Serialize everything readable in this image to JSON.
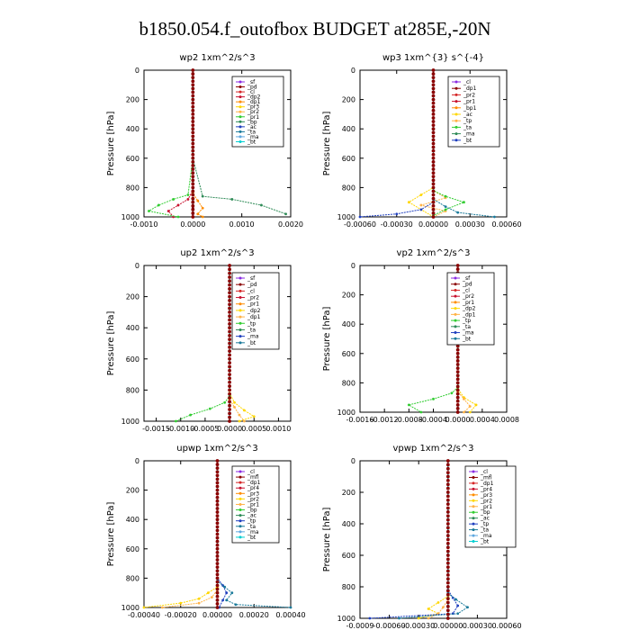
{
  "figure": {
    "title": "b1850.054.f_outofbox  BUDGET at285E,-20N"
  },
  "colors": {
    "purple": "#8a2be2",
    "dark_red": "#8b0000",
    "red": "#d62728",
    "crimson": "#c8102e",
    "orange": "#ff8c00",
    "gold": "#ffd700",
    "light_orange": "#ffb347",
    "lime": "#32cd32",
    "green": "#2e8b57",
    "dark_green": "#006400",
    "blue": "#1f3fbf",
    "teal": "#1a7a9a",
    "cyan": "#00ced1",
    "light_blue": "#5fa8e0",
    "navy": "#00008b"
  },
  "chart_data": [
    {
      "type": "line",
      "title": "wp2   1xm^2/s^3",
      "ylabel": "Pressure [hPa]",
      "ylim": [
        1000,
        0
      ],
      "xlim": [
        -0.001,
        0.002
      ],
      "yticks": [
        0,
        200,
        400,
        600,
        800,
        1000
      ],
      "xticks": [
        -0.001,
        0.0,
        0.001,
        0.002
      ],
      "xtick_labels": [
        "-0.0010",
        "0.0000",
        "0.0010",
        "0.0020"
      ],
      "legend": [
        "_sf",
        "_pd",
        "_cl",
        "_dp2",
        "_dp1",
        "_pr3",
        "_pr2",
        "_pr1",
        "_bp",
        "_ac",
        "_ta",
        "_ma",
        "_bt"
      ],
      "series": [
        {
          "name": "_sf",
          "color": "#8a2be2",
          "x": [
            0,
            0,
            0,
            0,
            0,
            0,
            0,
            0,
            0
          ],
          "y": [
            0,
            200,
            400,
            600,
            800,
            880,
            940,
            980,
            1000
          ]
        },
        {
          "name": "_pd",
          "color": "#8b0000",
          "x": [
            0,
            0,
            0,
            0,
            0,
            0,
            0,
            0,
            0
          ],
          "y": [
            0,
            200,
            400,
            600,
            800,
            880,
            940,
            980,
            1000
          ]
        },
        {
          "name": "_dp2",
          "color": "#c8102e",
          "x": [
            0,
            0,
            0,
            -0.0001,
            -0.0003,
            -0.0005,
            -0.0004
          ],
          "y": [
            0,
            600,
            820,
            880,
            920,
            960,
            1000
          ]
        },
        {
          "name": "_pr3",
          "color": "#ff8c00",
          "x": [
            0,
            0,
            0,
            0.0001,
            0.0002,
            0.0001,
            0.0002
          ],
          "y": [
            0,
            600,
            840,
            890,
            940,
            980,
            1000
          ]
        },
        {
          "name": "_pr1",
          "color": "#32cd32",
          "x": [
            0,
            0,
            -0.0001,
            -0.0004,
            -0.0007,
            -0.0009,
            -0.0003
          ],
          "y": [
            0,
            600,
            850,
            880,
            920,
            960,
            1000
          ]
        },
        {
          "name": "_ac",
          "color": "#2e8b57",
          "x": [
            0,
            0,
            0.0002,
            0.0008,
            0.0014,
            0.0019
          ],
          "y": [
            0,
            600,
            860,
            880,
            920,
            980
          ]
        },
        {
          "name": "_bt",
          "color": "#00ced1",
          "x": [
            0,
            0,
            0,
            0,
            0
          ],
          "y": [
            0,
            400,
            800,
            900,
            1000
          ]
        }
      ]
    },
    {
      "type": "line",
      "title": "wp3   1xm^{3} s^{-4}",
      "ylabel": "Pressure [hPa]",
      "ylim": [
        1000,
        0
      ],
      "xlim": [
        -0.0006,
        0.0006
      ],
      "yticks": [
        0,
        200,
        400,
        600,
        800,
        1000
      ],
      "xticks": [
        -0.0006,
        -0.0003,
        0.0,
        0.0003,
        0.0006
      ],
      "xtick_labels": [
        "-0.00060",
        "-0.00030",
        "0.00000",
        "0.00030",
        "0.00060"
      ],
      "legend": [
        "_cl",
        "_dp1",
        "_pr2",
        "_pr1",
        "_bp1",
        "_ac",
        "_tp",
        "_ta",
        "_ma",
        "_bt"
      ],
      "series": [
        {
          "name": "_cl",
          "color": "#8a2be2",
          "x": [
            0,
            0,
            0,
            0,
            0,
            0
          ],
          "y": [
            0,
            200,
            400,
            600,
            800,
            1000
          ]
        },
        {
          "name": "_dp1",
          "color": "#c8102e",
          "x": [
            0,
            0,
            0,
            0,
            0,
            0
          ],
          "y": [
            0,
            200,
            400,
            600,
            800,
            1000
          ]
        },
        {
          "name": "_pr2",
          "color": "#ffd700",
          "x": [
            0,
            0,
            -0.0001,
            -0.0002,
            -0.0001,
            0
          ],
          "y": [
            0,
            800,
            850,
            900,
            950,
            1000
          ]
        },
        {
          "name": "_pr1",
          "color": "#ffb347",
          "x": [
            0,
            0,
            0.0001,
            -0.0001,
            0.0001,
            0
          ],
          "y": [
            0,
            820,
            870,
            920,
            960,
            1000
          ]
        },
        {
          "name": "_ac",
          "color": "#32cd32",
          "x": [
            0,
            0,
            0.0001,
            0.00025,
            0.0001,
            0
          ],
          "y": [
            0,
            820,
            860,
            900,
            950,
            990
          ]
        },
        {
          "name": "_tp",
          "color": "#1f3fbf",
          "x": [
            0,
            0,
            -0.0001,
            -0.0003,
            -0.0006
          ],
          "y": [
            0,
            900,
            950,
            980,
            1000
          ]
        },
        {
          "name": "_ta",
          "color": "#1a7a9a",
          "x": [
            0,
            0,
            0.0001,
            0.0002,
            0.0005
          ],
          "y": [
            0,
            880,
            930,
            970,
            1000
          ]
        },
        {
          "name": "_bt",
          "color": "#00ced1",
          "x": [
            0,
            0,
            0,
            0
          ],
          "y": [
            0,
            500,
            900,
            1000
          ]
        }
      ]
    },
    {
      "type": "line",
      "title": "up2   1xm^2/s^3",
      "ylabel": "Pressure [hPa]",
      "ylim": [
        1000,
        0
      ],
      "xlim": [
        -0.00175,
        0.00125
      ],
      "yticks": [
        0,
        200,
        400,
        600,
        800,
        1000
      ],
      "xticks": [
        -0.0015,
        -0.001,
        -0.0005,
        0.0,
        0.0005,
        0.001
      ],
      "xtick_labels": [
        "-0.0015",
        "-0.0010",
        "-0.0005",
        "0.0000",
        "0.0005",
        "0.0010"
      ],
      "legend": [
        "_sf",
        "_pd",
        "_cl",
        "_pr2",
        "_pr1",
        "_dp2",
        "_dp1",
        "_tp",
        "_ta",
        "_ma",
        "_bt"
      ],
      "series": [
        {
          "name": "_sf",
          "color": "#8a2be2",
          "x": [
            0,
            0,
            0,
            0,
            0,
            0
          ],
          "y": [
            0,
            200,
            400,
            600,
            800,
            1000
          ]
        },
        {
          "name": "_pd",
          "color": "#8b0000",
          "x": [
            0,
            0,
            0,
            0,
            0,
            0
          ],
          "y": [
            0,
            200,
            400,
            600,
            800,
            1000
          ]
        },
        {
          "name": "_pr2",
          "color": "#ffd700",
          "x": [
            0,
            0,
            0.0001,
            0.0003,
            0.0005,
            0.0002
          ],
          "y": [
            0,
            820,
            880,
            930,
            970,
            1000
          ]
        },
        {
          "name": "_pr1",
          "color": "#ffb347",
          "x": [
            0,
            0,
            0.0001,
            0.0002,
            0.0003
          ],
          "y": [
            0,
            860,
            910,
            960,
            1000
          ]
        },
        {
          "name": "_dp1",
          "color": "#32cd32",
          "x": [
            0,
            0,
            -0.0001,
            -0.0004,
            -0.0008,
            -0.0011
          ],
          "y": [
            0,
            840,
            880,
            920,
            960,
            1000
          ]
        },
        {
          "name": "_bt",
          "color": "#00ced1",
          "x": [
            0,
            0,
            0,
            0
          ],
          "y": [
            0,
            500,
            900,
            1000
          ]
        }
      ]
    },
    {
      "type": "line",
      "title": "vp2   1xm^2/s^3",
      "ylabel": "Pressure [hPa]",
      "ylim": [
        1000,
        0
      ],
      "xlim": [
        -0.0016,
        0.0008
      ],
      "yticks": [
        0,
        200,
        400,
        600,
        800,
        1000
      ],
      "xticks": [
        -0.0016,
        -0.0012,
        -0.0008,
        -0.0004,
        0.0,
        0.0004,
        0.0008
      ],
      "xtick_labels": [
        "-0.0016",
        "-0.0012",
        "-0.0008",
        "-0.0004",
        "0.0000",
        "0.0004",
        "0.0008"
      ],
      "legend": [
        "_sf",
        "_pd",
        "_cl",
        "_pr2",
        "_pr1",
        "_dp2",
        "_dp1",
        "_tp",
        "_ta",
        "_ma",
        "_bt"
      ],
      "series": [
        {
          "name": "_sf",
          "color": "#8a2be2",
          "x": [
            0,
            0,
            0,
            0,
            0,
            0
          ],
          "y": [
            0,
            200,
            400,
            600,
            800,
            1000
          ]
        },
        {
          "name": "_pd",
          "color": "#8b0000",
          "x": [
            0,
            0,
            0,
            0,
            0,
            0
          ],
          "y": [
            0,
            200,
            400,
            600,
            800,
            1000
          ]
        },
        {
          "name": "_pr2",
          "color": "#ffd700",
          "x": [
            0,
            0,
            0.0001,
            0.0003,
            0.0002
          ],
          "y": [
            0,
            840,
            900,
            950,
            1000
          ]
        },
        {
          "name": "_pr1",
          "color": "#ffb347",
          "x": [
            0,
            0,
            0.0001,
            0.0002,
            0.0001
          ],
          "y": [
            0,
            860,
            910,
            960,
            1000
          ]
        },
        {
          "name": "_dp1",
          "color": "#32cd32",
          "x": [
            0,
            0,
            -0.0001,
            -0.0004,
            -0.0008,
            -0.0006
          ],
          "y": [
            0,
            830,
            870,
            910,
            950,
            1000
          ]
        },
        {
          "name": "_bt",
          "color": "#00ced1",
          "x": [
            0,
            0,
            0,
            0
          ],
          "y": [
            0,
            500,
            900,
            1000
          ]
        }
      ]
    },
    {
      "type": "line",
      "title": "upwp   1xm^2/s^3",
      "ylabel": "Pressure [hPa]",
      "ylim": [
        1000,
        0
      ],
      "xlim": [
        -0.0004,
        0.0004
      ],
      "yticks": [
        0,
        200,
        400,
        600,
        800,
        1000
      ],
      "xticks": [
        -0.0004,
        -0.0002,
        0.0,
        0.0002,
        0.0004
      ],
      "xtick_labels": [
        "-0.00040",
        "-0.00020",
        "0.00000",
        "0.00020",
        "0.00040"
      ],
      "legend": [
        "_cl",
        "_mfl",
        "_dp1",
        "_pr4",
        "_pr3",
        "_pr2",
        "_pr1",
        "_bp",
        "_ac",
        "_tp",
        "_ta",
        "_ma",
        "_bt"
      ],
      "series": [
        {
          "name": "_cl",
          "color": "#8a2be2",
          "x": [
            0,
            0,
            0,
            0,
            0,
            0
          ],
          "y": [
            0,
            200,
            400,
            600,
            800,
            1000
          ]
        },
        {
          "name": "_dp1",
          "color": "#8b0000",
          "x": [
            0,
            0,
            0,
            0,
            0,
            0
          ],
          "y": [
            0,
            200,
            400,
            600,
            800,
            1000
          ]
        },
        {
          "name": "_pr2",
          "color": "#ffd700",
          "x": [
            0,
            0,
            -5e-05,
            -0.0001,
            -0.0002,
            -0.0004
          ],
          "y": [
            0,
            860,
            900,
            940,
            970,
            1000
          ]
        },
        {
          "name": "_pr1",
          "color": "#ffb347",
          "x": [
            0,
            0,
            -3e-05,
            -0.0001,
            -0.0003
          ],
          "y": [
            0,
            880,
            930,
            970,
            1000
          ]
        },
        {
          "name": "_tp",
          "color": "#1f3fbf",
          "x": [
            0,
            0,
            3e-05,
            5e-05,
            3e-05,
            1e-05
          ],
          "y": [
            0,
            800,
            850,
            900,
            950,
            1000
          ]
        },
        {
          "name": "_ta",
          "color": "#1a7a9a",
          "x": [
            0,
            0,
            4e-05,
            8e-05,
            5e-05,
            0.0001,
            0.0004
          ],
          "y": [
            0,
            820,
            860,
            900,
            950,
            980,
            1000
          ]
        },
        {
          "name": "_bt",
          "color": "#00ced1",
          "x": [
            0,
            0,
            0,
            0
          ],
          "y": [
            0,
            500,
            900,
            1000
          ]
        }
      ]
    },
    {
      "type": "line",
      "title": "vpwp   1xm^2/s^3",
      "ylabel": "Pressure [hPa]",
      "ylim": [
        1000,
        0
      ],
      "xlim": [
        -0.0009,
        0.0006
      ],
      "yticks": [
        0,
        200,
        400,
        600,
        800,
        1000
      ],
      "xticks": [
        -0.0009,
        -0.0006,
        -0.0003,
        0.0,
        0.0003,
        0.0006
      ],
      "xtick_labels": [
        "-0.0009",
        "-0.00060",
        "-0.00030",
        "0.00000",
        "0.00030",
        "0.00060"
      ],
      "legend": [
        "_cl",
        "_mfl",
        "_dp1",
        "_pr4",
        "_pr3",
        "_pr2",
        "_pr1",
        "_bp",
        "_ac",
        "_tp",
        "_ta",
        "_ma",
        "_bt"
      ],
      "series": [
        {
          "name": "_cl",
          "color": "#8a2be2",
          "x": [
            0,
            0,
            0,
            0,
            0,
            0
          ],
          "y": [
            0,
            200,
            400,
            600,
            800,
            1000
          ]
        },
        {
          "name": "_dp1",
          "color": "#8b0000",
          "x": [
            0,
            0,
            0,
            0,
            0,
            0
          ],
          "y": [
            0,
            200,
            400,
            600,
            800,
            1000
          ]
        },
        {
          "name": "_pr2",
          "color": "#ffd700",
          "x": [
            0,
            0,
            -0.0001,
            -0.0002,
            -0.0001,
            -0.0003
          ],
          "y": [
            0,
            860,
            900,
            940,
            970,
            1000
          ]
        },
        {
          "name": "_pr1",
          "color": "#ffb347",
          "x": [
            0,
            0,
            -5e-05,
            -0.0001,
            -0.0002
          ],
          "y": [
            0,
            880,
            930,
            970,
            1000
          ]
        },
        {
          "name": "_tp",
          "color": "#1f3fbf",
          "x": [
            0,
            0,
            5e-05,
            0.0001,
            5e-05,
            -0.0008
          ],
          "y": [
            0,
            820,
            870,
            920,
            970,
            1000
          ]
        },
        {
          "name": "_ta",
          "color": "#1a7a9a",
          "x": [
            0,
            0,
            8e-05,
            0.0002,
            0.0001,
            -0.0005
          ],
          "y": [
            0,
            840,
            880,
            930,
            970,
            1000
          ]
        },
        {
          "name": "_bt",
          "color": "#00ced1",
          "x": [
            0,
            0,
            0,
            0
          ],
          "y": [
            0,
            500,
            900,
            1000
          ]
        }
      ]
    }
  ]
}
